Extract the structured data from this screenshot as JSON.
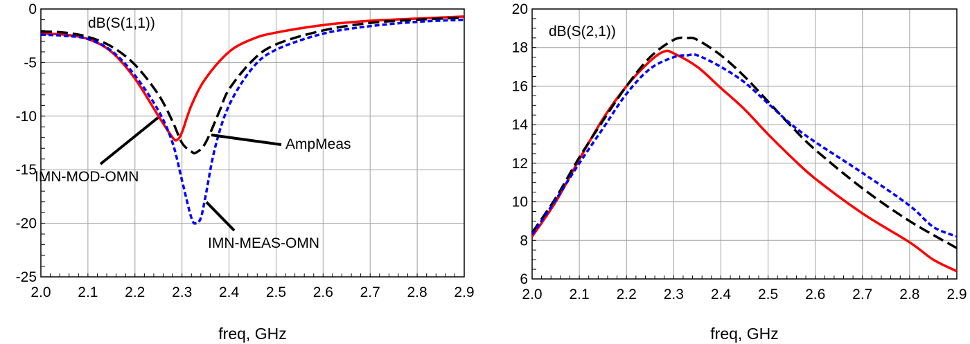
{
  "chart_data": [
    {
      "type": "line",
      "plot_label": "dB(S(1,1))",
      "xlabel": "freq, GHz",
      "ylabel": "",
      "xlim": [
        2.0,
        2.9
      ],
      "ylim": [
        -25,
        0
      ],
      "xticks": [
        "2.0",
        "2.1",
        "2.2",
        "2.3",
        "2.4",
        "2.5",
        "2.6",
        "2.7",
        "2.8",
        "2.9"
      ],
      "yticks": [
        "0",
        "-5",
        "-10",
        "-15",
        "-20",
        "-25"
      ],
      "grid": true,
      "series": [
        {
          "name": "IMN-MOD-OMN",
          "color": "#ff0000",
          "dash": "solid",
          "x": [
            2.0,
            2.05,
            2.1,
            2.15,
            2.2,
            2.25,
            2.28,
            2.29,
            2.3,
            2.32,
            2.35,
            2.4,
            2.45,
            2.5,
            2.6,
            2.7,
            2.8,
            2.9
          ],
          "y": [
            -2.3,
            -2.4,
            -2.8,
            -4.0,
            -6.5,
            -10.0,
            -12.0,
            -12.2,
            -11.5,
            -9.0,
            -6.5,
            -4.0,
            -2.8,
            -2.2,
            -1.5,
            -1.1,
            -0.9,
            -0.7
          ]
        },
        {
          "name": "AmpMeas",
          "color": "#000000",
          "dash": "long",
          "x": [
            2.0,
            2.05,
            2.1,
            2.15,
            2.2,
            2.25,
            2.28,
            2.3,
            2.32,
            2.33,
            2.35,
            2.38,
            2.4,
            2.45,
            2.5,
            2.6,
            2.7,
            2.8,
            2.9
          ],
          "y": [
            -2.1,
            -2.2,
            -2.6,
            -3.5,
            -5.2,
            -8.0,
            -10.5,
            -12.5,
            -13.3,
            -13.4,
            -12.5,
            -9.5,
            -7.5,
            -4.8,
            -3.3,
            -2.0,
            -1.3,
            -1.0,
            -0.8
          ]
        },
        {
          "name": "IMN-MEAS-OMN",
          "color": "#0000ff",
          "dash": "short",
          "x": [
            2.0,
            2.05,
            2.1,
            2.15,
            2.2,
            2.25,
            2.28,
            2.3,
            2.32,
            2.33,
            2.34,
            2.35,
            2.37,
            2.4,
            2.45,
            2.5,
            2.6,
            2.7,
            2.8,
            2.9
          ],
          "y": [
            -2.4,
            -2.5,
            -2.8,
            -3.9,
            -6.2,
            -9.5,
            -12.5,
            -16.0,
            -19.5,
            -20.0,
            -19.5,
            -17.5,
            -13.0,
            -9.0,
            -5.5,
            -3.8,
            -2.3,
            -1.6,
            -1.2,
            -1.0
          ]
        }
      ],
      "annotations": [
        {
          "text": "IMN-MOD-OMN",
          "target": "IMN-MOD-OMN"
        },
        {
          "text": "AmpMeas",
          "target": "AmpMeas"
        },
        {
          "text": "IMN-MEAS-OMN",
          "target": "IMN-MEAS-OMN"
        }
      ]
    },
    {
      "type": "line",
      "plot_label": "dB(S(2,1))",
      "xlabel": "freq, GHz",
      "ylabel": "",
      "xlim": [
        2.0,
        2.9
      ],
      "ylim": [
        6,
        20
      ],
      "xticks": [
        "2.0",
        "2.1",
        "2.2",
        "2.3",
        "2.4",
        "2.5",
        "2.6",
        "2.7",
        "2.8",
        "2.9"
      ],
      "yticks": [
        "20",
        "18",
        "16",
        "14",
        "12",
        "10",
        "8",
        "6"
      ],
      "grid": true,
      "series": [
        {
          "name": "IMN-MOD-OMN",
          "color": "#ff0000",
          "dash": "solid",
          "x": [
            2.0,
            2.05,
            2.1,
            2.15,
            2.2,
            2.25,
            2.28,
            2.3,
            2.35,
            2.4,
            2.45,
            2.5,
            2.55,
            2.6,
            2.7,
            2.8,
            2.85,
            2.9
          ],
          "y": [
            8.2,
            10.0,
            12.2,
            14.3,
            16.0,
            17.3,
            17.8,
            17.7,
            17.0,
            15.9,
            14.8,
            13.5,
            12.3,
            11.2,
            9.4,
            7.9,
            7.0,
            6.4
          ]
        },
        {
          "name": "AmpMeas",
          "color": "#000000",
          "dash": "long",
          "x": [
            2.0,
            2.05,
            2.1,
            2.15,
            2.2,
            2.25,
            2.3,
            2.33,
            2.35,
            2.4,
            2.45,
            2.5,
            2.55,
            2.6,
            2.7,
            2.8,
            2.9
          ],
          "y": [
            8.4,
            10.2,
            12.3,
            14.2,
            16.0,
            17.5,
            18.4,
            18.5,
            18.4,
            17.6,
            16.5,
            15.2,
            13.9,
            12.7,
            10.7,
            9.0,
            7.6
          ]
        },
        {
          "name": "IMN-MEAS-OMN",
          "color": "#0000ff",
          "dash": "short",
          "x": [
            2.0,
            2.05,
            2.1,
            2.15,
            2.2,
            2.25,
            2.3,
            2.33,
            2.35,
            2.4,
            2.45,
            2.5,
            2.55,
            2.6,
            2.7,
            2.8,
            2.85,
            2.9
          ],
          "y": [
            8.3,
            10.1,
            12.0,
            13.8,
            15.6,
            16.9,
            17.5,
            17.6,
            17.6,
            17.0,
            16.2,
            15.1,
            14.0,
            13.1,
            11.5,
            9.8,
            8.7,
            8.2
          ]
        }
      ]
    }
  ]
}
